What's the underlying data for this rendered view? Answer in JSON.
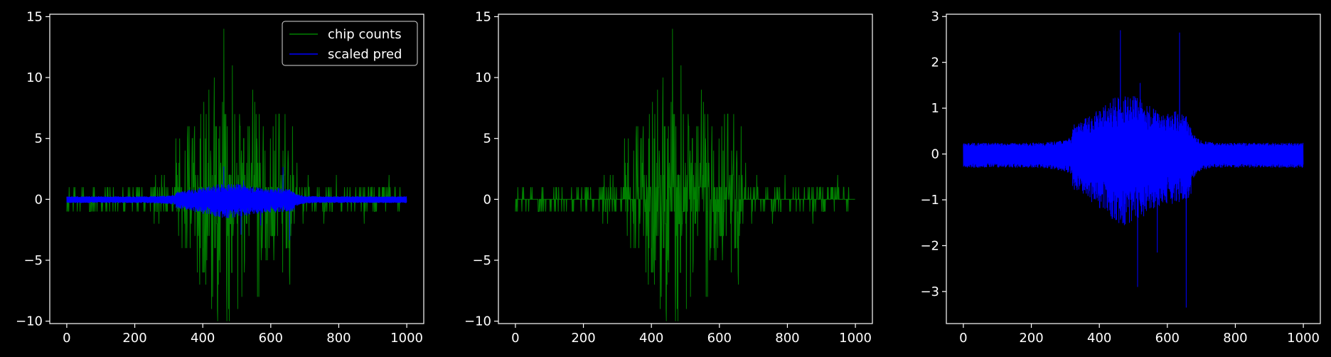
{
  "colors": {
    "background": "#000000",
    "foreground": "#ffffff",
    "chip": "#008000",
    "pred": "#0000ff"
  },
  "chart_data": [
    {
      "type": "line",
      "xlim": [
        -50,
        1050
      ],
      "ylim": [
        -10.2,
        15.2
      ],
      "xticks": [
        0,
        200,
        400,
        600,
        800,
        1000
      ],
      "xtick_labels": [
        "0",
        "200",
        "400",
        "600",
        "800",
        "1000"
      ],
      "yticks": [
        -10,
        -5,
        0,
        5,
        10,
        15
      ],
      "ytick_labels": [
        "−10",
        "−5",
        "0",
        "5",
        "10",
        "15"
      ],
      "legend": {
        "placement": "top-right",
        "entries": [
          "chip counts",
          "scaled pred"
        ]
      },
      "series": [
        {
          "name": "chip counts",
          "color": "#008000",
          "kind": "chip",
          "n_points": 1000
        },
        {
          "name": "scaled pred",
          "color": "#0000ff",
          "kind": "pred",
          "n_points": 1000
        }
      ]
    },
    {
      "type": "line",
      "xlim": [
        -50,
        1050
      ],
      "ylim": [
        -10.2,
        15.2
      ],
      "xticks": [
        0,
        200,
        400,
        600,
        800,
        1000
      ],
      "xtick_labels": [
        "0",
        "200",
        "400",
        "600",
        "800",
        "1000"
      ],
      "yticks": [
        -10,
        -5,
        0,
        5,
        10,
        15
      ],
      "ytick_labels": [
        "−10",
        "−5",
        "0",
        "5",
        "10",
        "15"
      ],
      "series": [
        {
          "color": "#008000",
          "kind": "chip",
          "n_points": 1000
        }
      ]
    },
    {
      "type": "line",
      "xlim": [
        -50,
        1050
      ],
      "ylim": [
        -3.7,
        3.05
      ],
      "xticks": [
        0,
        200,
        400,
        600,
        800,
        1000
      ],
      "xtick_labels": [
        "0",
        "200",
        "400",
        "600",
        "800",
        "1000"
      ],
      "yticks": [
        -3,
        -2,
        -1,
        0,
        1,
        2,
        3
      ],
      "ytick_labels": [
        "−3",
        "−2",
        "−1",
        "0",
        "1",
        "2",
        "3"
      ],
      "series": [
        {
          "color": "#0000ff",
          "kind": "pred",
          "n_points": 1000
        }
      ]
    }
  ]
}
